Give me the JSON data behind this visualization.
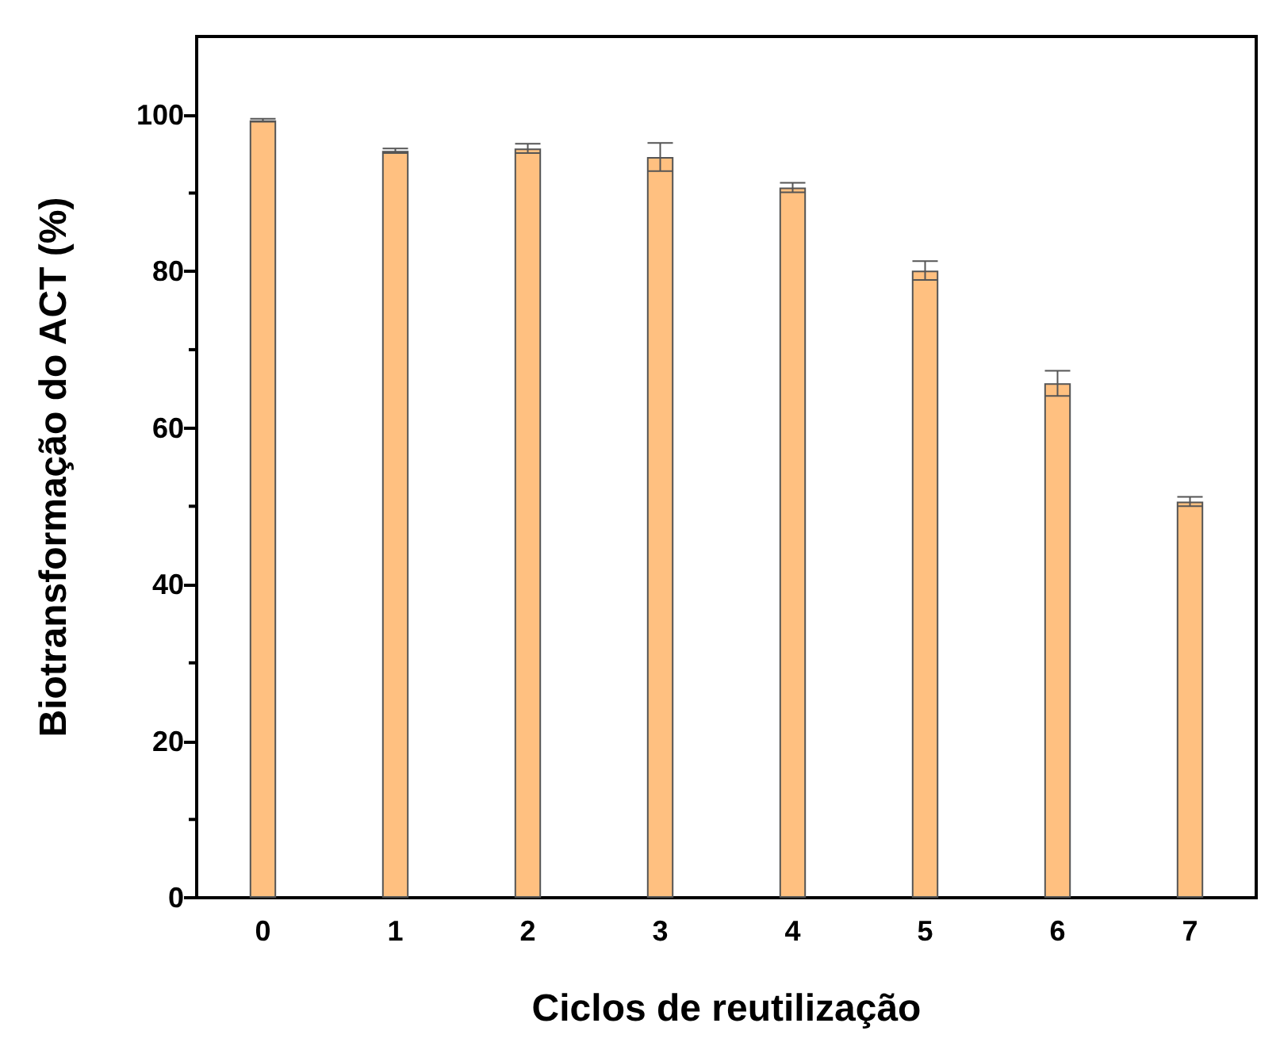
{
  "chart_data": {
    "type": "bar",
    "xlabel": "Ciclos de reutilização",
    "ylabel": "Biotransformação do ACT (%)",
    "categories": [
      "0",
      "1",
      "2",
      "3",
      "4",
      "5",
      "6",
      "7"
    ],
    "values": [
      99.3,
      95.4,
      95.7,
      94.6,
      90.7,
      80.1,
      65.7,
      50.6
    ],
    "errors": [
      0.2,
      0.3,
      0.6,
      1.8,
      0.6,
      1.2,
      1.6,
      0.6
    ],
    "color": "#ffc080",
    "ylim": [
      0,
      110
    ],
    "yticks": [
      0,
      20,
      40,
      60,
      80,
      100
    ],
    "grid": false
  }
}
